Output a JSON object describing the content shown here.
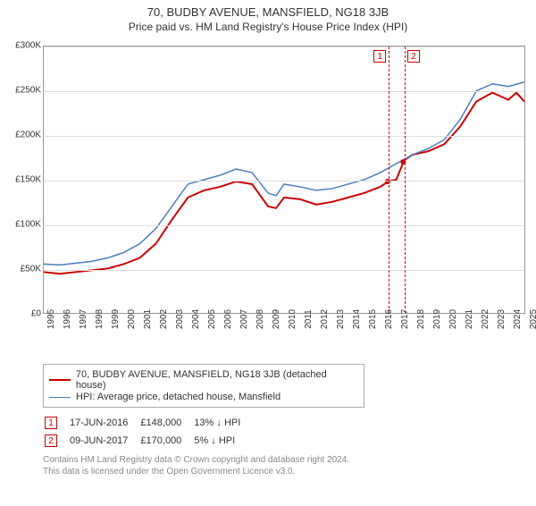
{
  "title": "70, BUDBY AVENUE, MANSFIELD, NG18 3JB",
  "subtitle": "Price paid vs. HM Land Registry's House Price Index (HPI)",
  "chart": {
    "type": "line",
    "background_color": "#ffffff",
    "grid_color": "#dddddd",
    "axis_color": "#999999",
    "ylim": [
      0,
      300000
    ],
    "ytick_step": 50000,
    "ytick_labels": [
      "£0",
      "£50K",
      "£100K",
      "£150K",
      "£200K",
      "£250K",
      "£300K"
    ],
    "xlim": [
      1995,
      2025
    ],
    "xtick_step": 1,
    "xtick_labels": [
      "1995",
      "1996",
      "1997",
      "1998",
      "1999",
      "2000",
      "2001",
      "2002",
      "2003",
      "2004",
      "2005",
      "2006",
      "2007",
      "2008",
      "2009",
      "2010",
      "2011",
      "2012",
      "2013",
      "2014",
      "2015",
      "2016",
      "2017",
      "2018",
      "2019",
      "2020",
      "2021",
      "2022",
      "2023",
      "2024",
      "2025"
    ],
    "series": [
      {
        "name": "70, BUDBY AVENUE, MANSFIELD, NG18 3JB (detached house)",
        "color": "#cc0000",
        "line_width": 2,
        "x": [
          1995,
          1996,
          1997,
          1998,
          1999,
          2000,
          2001,
          2002,
          2003,
          2004,
          2005,
          2006,
          2007,
          2008,
          2009,
          2009.5,
          2010,
          2011,
          2012,
          2013,
          2014,
          2015,
          2016,
          2016.5,
          2017,
          2017.5,
          2018,
          2019,
          2020,
          2021,
          2022,
          2023,
          2024,
          2024.5,
          2025
        ],
        "y": [
          46000,
          44000,
          46000,
          48000,
          50000,
          55000,
          62000,
          78000,
          105000,
          130000,
          138000,
          142000,
          148000,
          145000,
          120000,
          118000,
          130000,
          128000,
          122000,
          125000,
          130000,
          135000,
          142000,
          148000,
          150000,
          172000,
          178000,
          182000,
          190000,
          210000,
          238000,
          248000,
          240000,
          248000,
          238000
        ]
      },
      {
        "name": "HPI: Average price, detached house, Mansfield",
        "color": "#4a7ebb",
        "line_width": 1.5,
        "x": [
          1995,
          1996,
          1997,
          1998,
          1999,
          2000,
          2001,
          2002,
          2003,
          2004,
          2005,
          2006,
          2007,
          2008,
          2009,
          2009.5,
          2010,
          2011,
          2012,
          2013,
          2014,
          2015,
          2016,
          2017,
          2018,
          2019,
          2020,
          2021,
          2022,
          2023,
          2024,
          2025
        ],
        "y": [
          55000,
          54000,
          56000,
          58000,
          62000,
          68000,
          78000,
          95000,
          120000,
          145000,
          150000,
          155000,
          162000,
          158000,
          135000,
          132000,
          145000,
          142000,
          138000,
          140000,
          145000,
          150000,
          158000,
          168000,
          178000,
          185000,
          195000,
          218000,
          250000,
          258000,
          255000,
          260000
        ]
      }
    ],
    "points": [
      {
        "x": 2016.46,
        "y": 148000,
        "color": "#cc0000",
        "radius": 3
      },
      {
        "x": 2017.44,
        "y": 170000,
        "color": "#cc0000",
        "radius": 3
      }
    ],
    "events": [
      {
        "id": "1",
        "x": 2016.46,
        "line_color": "#cc0000",
        "dash": "4,3"
      },
      {
        "id": "2",
        "x": 2017.44,
        "line_color": "#cc0000",
        "dash": "4,3"
      }
    ]
  },
  "legend": {
    "border_color": "#aaaaaa",
    "items": [
      {
        "label": "70, BUDBY AVENUE, MANSFIELD, NG18 3JB (detached house)",
        "color": "#cc0000",
        "width": 2
      },
      {
        "label": "HPI: Average price, detached house, Mansfield",
        "color": "#4a7ebb",
        "width": 1.5
      }
    ]
  },
  "events_table": {
    "rows": [
      {
        "badge": "1",
        "date": "17-JUN-2016",
        "price": "£148,000",
        "delta": "13% ↓ HPI"
      },
      {
        "badge": "2",
        "date": "09-JUN-2017",
        "price": "£170,000",
        "delta": "5% ↓ HPI"
      }
    ]
  },
  "footer": {
    "line1": "Contains HM Land Registry data © Crown copyright and database right 2024.",
    "line2": "This data is licensed under the Open Government Licence v3.0."
  }
}
